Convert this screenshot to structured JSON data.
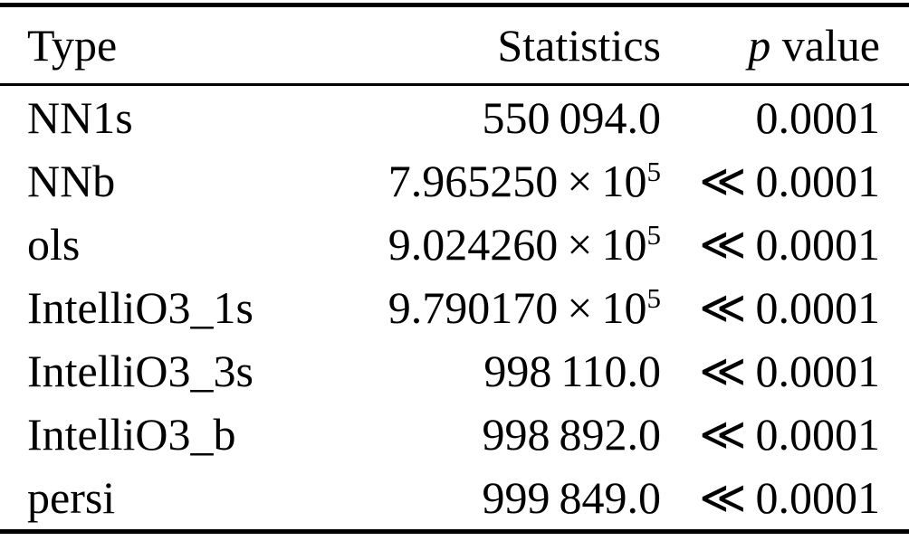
{
  "table": {
    "headers": {
      "type": "Type",
      "statistics": "Statistics",
      "p_italic": "p",
      "p_rest": " value"
    },
    "rows": [
      {
        "type": "NN1s",
        "stat_main": "550 094.0",
        "stat_exp": "",
        "p": "0.0001"
      },
      {
        "type": "NNb",
        "stat_main": "7.965250 × 10",
        "stat_exp": "5",
        "p": "≪ 0.0001"
      },
      {
        "type": "ols",
        "stat_main": "9.024260 × 10",
        "stat_exp": "5",
        "p": "≪ 0.0001"
      },
      {
        "type": "IntelliO3_1s",
        "stat_main": "9.790170 × 10",
        "stat_exp": "5",
        "p": "≪ 0.0001"
      },
      {
        "type": "IntelliO3_3s",
        "stat_main": "998 110.0",
        "stat_exp": "",
        "p": "≪ 0.0001"
      },
      {
        "type": "IntelliO3_b",
        "stat_main": "998 892.0",
        "stat_exp": "",
        "p": "≪ 0.0001"
      },
      {
        "type": "persi",
        "stat_main": "999 849.0",
        "stat_exp": "",
        "p": "≪ 0.0001"
      }
    ]
  },
  "colors": {
    "text": "#000000",
    "rule": "#000000",
    "background": "#ffffff"
  },
  "chart_data": {
    "type": "table",
    "title": "",
    "columns": [
      "Type",
      "Statistics",
      "p value"
    ],
    "rows": [
      [
        "NN1s",
        "550094.0",
        "0.0001"
      ],
      [
        "NNb",
        "7.965250e5",
        "<< 0.0001"
      ],
      [
        "ols",
        "9.024260e5",
        "<< 0.0001"
      ],
      [
        "IntelliO3_1s",
        "9.790170e5",
        "<< 0.0001"
      ],
      [
        "IntelliO3_3s",
        "998110.0",
        "<< 0.0001"
      ],
      [
        "IntelliO3_b",
        "998892.0",
        "<< 0.0001"
      ],
      [
        "persi",
        "999849.0",
        "<< 0.0001"
      ]
    ]
  }
}
